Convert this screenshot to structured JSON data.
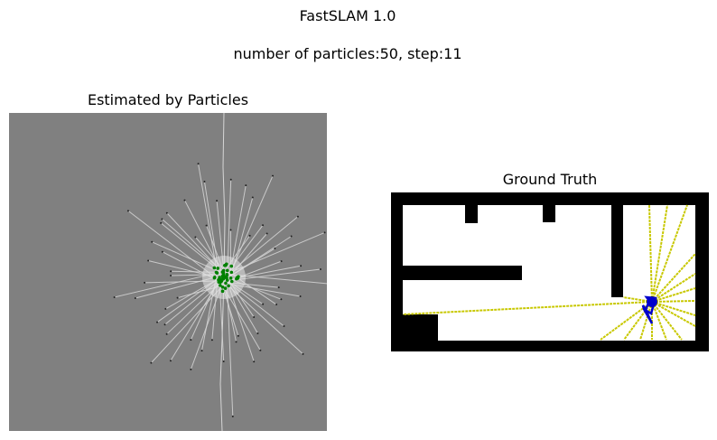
{
  "figure": {
    "title_line1": "FastSLAM 1.0",
    "title_line2": "number of particles:50, step:11"
  },
  "panels": {
    "estimated": {
      "title": "Estimated by Particles",
      "background_color": "#808080",
      "ray_color": "#d6d6d6",
      "particle_color": "#008000",
      "ray_count": 60
    },
    "ground_truth": {
      "title": "Ground Truth",
      "wall_color": "#000000",
      "free_color": "#ffffff",
      "ray_color": "#c8c800",
      "trajectory_color": "#0000cc"
    }
  },
  "colors": {
    "axis_text": "#000000",
    "page_background": "#ffffff"
  }
}
